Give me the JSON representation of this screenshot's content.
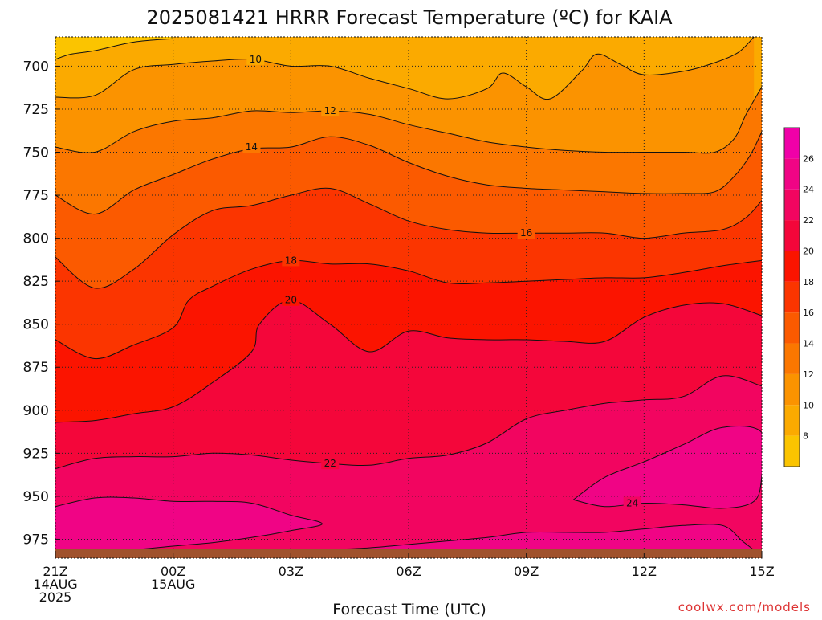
{
  "chart_data": {
    "type": "filled-contour",
    "title": "2025081421 HRRR Forecast Temperature (ºC) for KAIA",
    "xlabel": "Forecast Time (UTC)",
    "ylabel": "",
    "credit": "coolwx.com/models",
    "x_ticks": [
      {
        "hour": 0,
        "lines": [
          "21Z",
          "14AUG",
          "2025"
        ]
      },
      {
        "hour": 3,
        "lines": [
          "00Z",
          "15AUG"
        ]
      },
      {
        "hour": 6,
        "lines": [
          "03Z"
        ]
      },
      {
        "hour": 9,
        "lines": [
          "06Z"
        ]
      },
      {
        "hour": 12,
        "lines": [
          "09Z"
        ]
      },
      {
        "hour": 15,
        "lines": [
          "12Z"
        ]
      },
      {
        "hour": 18,
        "lines": [
          "15Z"
        ]
      }
    ],
    "y_ticks": [
      700,
      725,
      750,
      775,
      800,
      825,
      850,
      875,
      900,
      925,
      950,
      975
    ],
    "ylim_hpa": [
      683,
      986
    ],
    "ground_hpa": 980,
    "grid": true,
    "colorbar": {
      "levels": [
        8,
        10,
        12,
        14,
        16,
        18,
        20,
        22,
        24,
        26
      ],
      "range": [
        6,
        28
      ],
      "colors": [
        "#FBC400",
        "#FBAA00",
        "#FB9300",
        "#FB7700",
        "#FB5A00",
        "#FB3500",
        "#FB1400",
        "#F4063A",
        "#F20560",
        "#F00485",
        "#F000A8"
      ]
    },
    "contours": [
      {
        "value": 10,
        "points": [
          [
            0,
            696
          ],
          [
            0.4,
            693
          ],
          [
            1.0,
            691
          ],
          [
            2.0,
            686
          ],
          [
            3.0,
            684
          ]
        ],
        "label_at": null
      },
      {
        "value": 10,
        "points": [
          [
            0,
            718
          ],
          [
            1.0,
            717
          ],
          [
            2.0,
            702
          ],
          [
            3.0,
            699
          ],
          [
            4.0,
            697
          ],
          [
            5.0,
            696
          ],
          [
            6.0,
            700
          ],
          [
            7.0,
            700
          ],
          [
            8.0,
            707
          ],
          [
            9.0,
            713
          ],
          [
            10.0,
            719
          ],
          [
            11.0,
            713
          ],
          [
            11.4,
            704
          ],
          [
            12.0,
            712
          ],
          [
            12.6,
            719
          ],
          [
            13.4,
            703
          ],
          [
            13.8,
            693
          ],
          [
            14.4,
            699
          ],
          [
            15.0,
            705
          ],
          [
            16.0,
            703
          ],
          [
            16.8,
            698
          ],
          [
            17.4,
            692
          ],
          [
            17.8,
            683
          ]
        ],
        "label_at": [
          5.1,
          696
        ]
      },
      {
        "value": 12,
        "points": [
          [
            0,
            747
          ],
          [
            1.0,
            750
          ],
          [
            2.0,
            738
          ],
          [
            3.0,
            732
          ],
          [
            4.0,
            730
          ],
          [
            5.0,
            726
          ],
          [
            6.0,
            727
          ],
          [
            7.0,
            726
          ],
          [
            8.0,
            728
          ],
          [
            9.0,
            734
          ],
          [
            10.0,
            739
          ],
          [
            11.0,
            744
          ],
          [
            12.0,
            747
          ],
          [
            13.0,
            749
          ],
          [
            14.0,
            750
          ],
          [
            15.0,
            750
          ],
          [
            16.0,
            750
          ],
          [
            16.8,
            750
          ],
          [
            17.3,
            742
          ],
          [
            17.6,
            728
          ],
          [
            18.0,
            712
          ]
        ],
        "label_at": [
          7.0,
          726
        ]
      },
      {
        "value": 14,
        "points": [
          [
            0,
            775
          ],
          [
            1.0,
            786
          ],
          [
            2.0,
            772
          ],
          [
            3.0,
            763
          ],
          [
            4.0,
            754
          ],
          [
            5.0,
            748
          ],
          [
            6.0,
            747
          ],
          [
            7.0,
            741
          ],
          [
            8.0,
            746
          ],
          [
            9.0,
            756
          ],
          [
            10.0,
            764
          ],
          [
            11.0,
            769
          ],
          [
            12.0,
            771
          ],
          [
            13.0,
            772
          ],
          [
            14.0,
            773
          ],
          [
            15.0,
            774
          ],
          [
            16.0,
            774
          ],
          [
            16.8,
            773
          ],
          [
            17.3,
            764
          ],
          [
            17.7,
            752
          ],
          [
            18.0,
            738
          ]
        ],
        "label_at": [
          5.0,
          747
        ]
      },
      {
        "value": 16,
        "points": [
          [
            0,
            811
          ],
          [
            1.0,
            829
          ],
          [
            2.0,
            818
          ],
          [
            3.0,
            798
          ],
          [
            4.0,
            784
          ],
          [
            5.0,
            781
          ],
          [
            6.0,
            775
          ],
          [
            7.0,
            771
          ],
          [
            8.0,
            780
          ],
          [
            9.0,
            790
          ],
          [
            10.0,
            795
          ],
          [
            11.0,
            797
          ],
          [
            12.0,
            797
          ],
          [
            13.0,
            797
          ],
          [
            14.0,
            797
          ],
          [
            15.0,
            800
          ],
          [
            16.0,
            797
          ],
          [
            17.0,
            795
          ],
          [
            17.6,
            788
          ],
          [
            18.0,
            778
          ]
        ],
        "label_at": [
          12.0,
          797
        ]
      },
      {
        "value": 18,
        "points": [
          [
            0,
            859
          ],
          [
            1.0,
            870
          ],
          [
            2.0,
            862
          ],
          [
            3.0,
            852
          ],
          [
            3.4,
            836
          ],
          [
            4.0,
            828
          ],
          [
            5.0,
            818
          ],
          [
            6.0,
            813
          ],
          [
            7.0,
            815
          ],
          [
            8.0,
            815
          ],
          [
            9.0,
            819
          ],
          [
            10.0,
            826
          ],
          [
            11.0,
            826
          ],
          [
            12.0,
            825
          ],
          [
            13.0,
            824
          ],
          [
            14.0,
            823
          ],
          [
            15.0,
            823
          ],
          [
            16.0,
            820
          ],
          [
            17.0,
            816
          ],
          [
            18.0,
            813
          ]
        ],
        "label_at": [
          6.0,
          813
        ]
      },
      {
        "value": 20,
        "points": [
          [
            0,
            907
          ],
          [
            1.0,
            906
          ],
          [
            2.0,
            902
          ],
          [
            3.0,
            898
          ],
          [
            4.0,
            884
          ],
          [
            5.0,
            866
          ],
          [
            5.2,
            850
          ],
          [
            6.0,
            836
          ],
          [
            7.0,
            850
          ],
          [
            8.0,
            866
          ],
          [
            9.0,
            854
          ],
          [
            10.0,
            858
          ],
          [
            11.0,
            859
          ],
          [
            12.0,
            859
          ],
          [
            13.0,
            860
          ],
          [
            14.0,
            860
          ],
          [
            15.0,
            846
          ],
          [
            16.0,
            839
          ],
          [
            17.0,
            838
          ],
          [
            18.0,
            845
          ]
        ],
        "label_at": [
          6.0,
          836
        ]
      },
      {
        "value": 22,
        "points": [
          [
            0,
            934
          ],
          [
            1.0,
            928
          ],
          [
            2.0,
            927
          ],
          [
            3.0,
            927
          ],
          [
            4.0,
            925
          ],
          [
            5.0,
            926
          ],
          [
            6.0,
            929
          ],
          [
            7.0,
            931
          ],
          [
            8.0,
            932
          ],
          [
            9.0,
            928
          ],
          [
            10.0,
            926
          ],
          [
            11.0,
            919
          ],
          [
            12.0,
            905
          ],
          [
            13.0,
            900
          ],
          [
            14.0,
            896
          ],
          [
            15.0,
            894
          ],
          [
            16.0,
            892
          ],
          [
            17.0,
            880
          ],
          [
            18.0,
            886
          ]
        ],
        "label_at": [
          7.0,
          931
        ]
      },
      {
        "value": 24,
        "points": [
          [
            0,
            956
          ],
          [
            1.0,
            951
          ],
          [
            2.0,
            951
          ],
          [
            3.0,
            953
          ],
          [
            4.0,
            953
          ],
          [
            5.0,
            954
          ],
          [
            6.0,
            961
          ],
          [
            6.8,
            966
          ],
          [
            6.0,
            970
          ],
          [
            5.0,
            974
          ],
          [
            4.0,
            977
          ],
          [
            3.0,
            979
          ],
          [
            2.0,
            981
          ],
          [
            1.0,
            981
          ],
          [
            0,
            983
          ]
        ],
        "label_at": null
      },
      {
        "value": 24,
        "points": [
          [
            13.2,
            952
          ],
          [
            14.0,
            939
          ],
          [
            15.0,
            930
          ],
          [
            16.0,
            920
          ],
          [
            17.0,
            910
          ],
          [
            18.0,
            913
          ],
          [
            18.0,
            938
          ],
          [
            17.8,
            953
          ],
          [
            17.0,
            957
          ],
          [
            16.0,
            955
          ],
          [
            15.0,
            954
          ],
          [
            14.0,
            956
          ],
          [
            13.2,
            952
          ]
        ],
        "label_at": [
          14.7,
          954
        ]
      },
      {
        "value": 24,
        "points": [
          [
            17.9,
            983
          ],
          [
            17.5,
            976
          ],
          [
            17.0,
            967
          ],
          [
            16.0,
            967
          ],
          [
            15.0,
            969
          ],
          [
            14.0,
            971
          ],
          [
            13.0,
            971
          ],
          [
            12.0,
            971
          ],
          [
            11.0,
            974
          ],
          [
            10.0,
            976
          ],
          [
            9.0,
            978
          ],
          [
            8.0,
            980
          ],
          [
            7.0,
            981
          ],
          [
            6.0,
            982
          ]
        ],
        "label_at": null
      }
    ]
  }
}
